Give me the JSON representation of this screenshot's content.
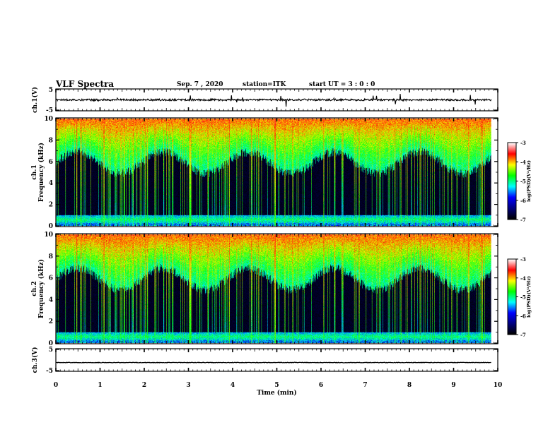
{
  "header": {
    "title": "VLF Spectra",
    "date": "Sep. 7 , 2020",
    "station": "station=ITK",
    "start": "start UT = 3 : 0 : 0"
  },
  "colors": {
    "background": "#ffffff",
    "spectrogram_low": "#000000",
    "colormap": [
      "#000000",
      "#000080",
      "#0000ff",
      "#00ffff",
      "#00ff00",
      "#ffff00",
      "#ff0000",
      "#ffffff"
    ]
  },
  "chart_data": [
    {
      "type": "line",
      "ylabel": "ch.1(V)",
      "ylim": [
        -5,
        5
      ],
      "yticks": [
        "5",
        "-5"
      ],
      "xlim": [
        0,
        10
      ],
      "baseline": 0
    },
    {
      "type": "heatmap",
      "ylabel": "ch.1\nFrequency (kHz)",
      "ylabel_line1": "ch.1",
      "ylabel_line2": "Frequency (kHz)",
      "ylim": [
        0,
        10
      ],
      "yticks": [
        "0",
        "2",
        "4",
        "6",
        "8",
        "10"
      ],
      "xlim": [
        0,
        10
      ],
      "data_end_min": 9.85,
      "colorbar": {
        "label": "log(PSD)(V²/Hz)",
        "range": [
          -7,
          -3
        ],
        "ticks": [
          "-3",
          "-4",
          "-5",
          "-6",
          "-7"
        ]
      }
    },
    {
      "type": "heatmap",
      "ylabel": "ch.2\nFrequency (kHz)",
      "ylabel_line1": "ch.2",
      "ylabel_line2": "Frequency (kHz)",
      "ylim": [
        0,
        10
      ],
      "yticks": [
        "0",
        "2",
        "4",
        "6",
        "8",
        "10"
      ],
      "xlim": [
        0,
        10
      ],
      "data_end_min": 9.85,
      "colorbar": {
        "label": "log(PSD)(V²/Hz)",
        "range": [
          -7,
          -3
        ],
        "ticks": [
          "-3",
          "-4",
          "-5",
          "-6",
          "-7"
        ]
      }
    },
    {
      "type": "line",
      "ylabel": "ch.3(V)",
      "ylim": [
        -5,
        5
      ],
      "yticks": [
        "5",
        "-5"
      ],
      "xlim": [
        0,
        10
      ],
      "xlabel": "Time (min)",
      "xticks": [
        "0",
        "1",
        "2",
        "3",
        "4",
        "5",
        "6",
        "7",
        "8",
        "9",
        "10"
      ],
      "baseline": -1.2
    }
  ]
}
